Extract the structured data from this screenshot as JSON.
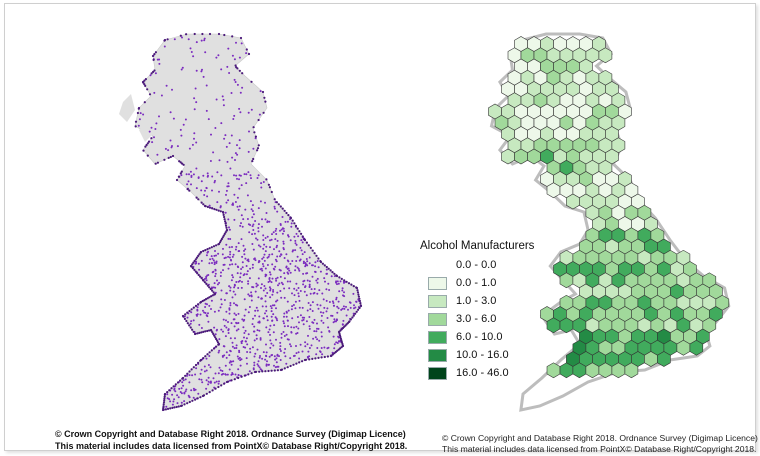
{
  "figure": {
    "left_panel": {
      "credit_line_1": "© Crown Copyright and Database Right 2018. Ordnance Survey (Digimap Licence)",
      "credit_line_2": "This material includes data licensed from PointX© Database Right/Copyright 2018."
    },
    "right_panel": {
      "credit_line_1": "© Crown Copyright and Database Right 2018. Ordnance Survey (Digimap Licence)",
      "credit_line_2": "This material includes data licensed from PointX© Database Right/Copyright 2018."
    },
    "legend": {
      "title": "Alcohol Manufacturers",
      "items": [
        {
          "label": "0.0 - 0.0",
          "color": "none"
        },
        {
          "label": "0.0 - 1.0",
          "color": "#edf8e9"
        },
        {
          "label": "1.0 - 3.0",
          "color": "#c7e9c0"
        },
        {
          "label": "3.0 - 6.0",
          "color": "#a1d99b"
        },
        {
          "label": "6.0 - 10.0",
          "color": "#41ab5d"
        },
        {
          "label": "10.0 - 16.0",
          "color": "#238b45"
        },
        {
          "label": "16.0 - 46.0",
          "color": "#00441b"
        }
      ]
    },
    "colors": {
      "land": "#e0e0e0",
      "points": "#7b2cbf"
    }
  }
}
